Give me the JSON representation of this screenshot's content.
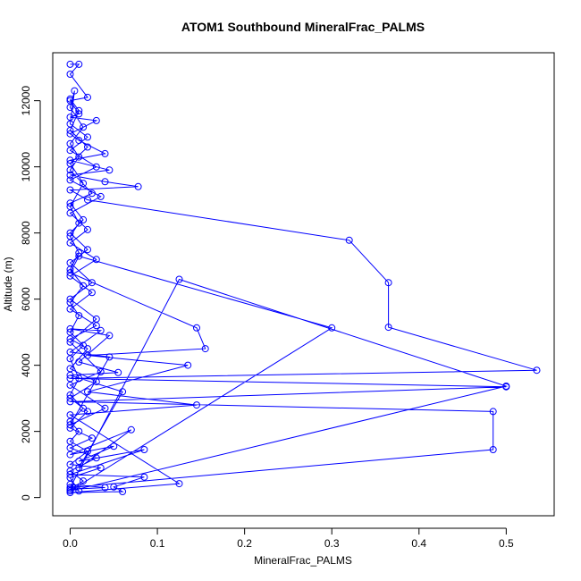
{
  "chart_data": {
    "type": "scatter",
    "title": "ATOM1 Southbound MineralFrac_PALMS",
    "xlabel": "MineralFrac_PALMS",
    "ylabel": "Altitude (m)",
    "xlim": [
      -0.02,
      0.555
    ],
    "ylim": [
      -550,
      13450
    ],
    "xticks": [
      0,
      0.1,
      0.2,
      0.3,
      0.4,
      0.5
    ],
    "xtick_labels": [
      "0.0",
      "0.1",
      "0.2",
      "0.3",
      "0.4",
      "0.5"
    ],
    "yticks": [
      0,
      2000,
      4000,
      6000,
      8000,
      10000,
      12000
    ],
    "ytick_labels": [
      "0",
      "2000",
      "4000",
      "6000",
      "8000",
      "10000",
      "12000"
    ],
    "grid": false,
    "legend": "none",
    "series": [
      {
        "color": "#0000ff",
        "marker": "open-circle",
        "connected": true,
        "points": [
          [
            0.0,
            13100
          ],
          [
            0.01,
            13100
          ],
          [
            0.0,
            12800
          ],
          [
            0.02,
            12100
          ],
          [
            0.0,
            12000
          ],
          [
            0.01,
            11600
          ],
          [
            0.0,
            11500
          ],
          [
            0.03,
            11400
          ],
          [
            0.0,
            11000
          ],
          [
            0.01,
            10800
          ],
          [
            0.04,
            10400
          ],
          [
            0.0,
            10200
          ],
          [
            0.045,
            9900
          ],
          [
            0.0,
            9750
          ],
          [
            0.04,
            9550
          ],
          [
            0.078,
            9400
          ],
          [
            0.0,
            9300
          ],
          [
            0.02,
            9000
          ],
          [
            0.32,
            7780
          ],
          [
            0.365,
            6500
          ],
          [
            0.365,
            5150
          ],
          [
            0.535,
            3850
          ],
          [
            0.0,
            3600
          ],
          [
            0.5,
            3350
          ],
          [
            0.0,
            2900
          ],
          [
            0.485,
            2600
          ],
          [
            0.485,
            1450
          ],
          [
            0.0,
            300
          ],
          [
            0.125,
            6600
          ],
          [
            0.5,
            3370
          ],
          [
            0.0,
            200
          ],
          [
            0.3,
            5130
          ],
          [
            0.01,
            7300
          ],
          [
            0.0,
            6800
          ],
          [
            0.145,
            5130
          ],
          [
            0.155,
            4500
          ],
          [
            0.02,
            4300
          ],
          [
            0.135,
            4000
          ],
          [
            0.02,
            3200
          ],
          [
            0.145,
            2800
          ],
          [
            0.0,
            2500
          ],
          [
            0.125,
            420
          ],
          [
            0.0,
            150
          ],
          [
            0.06,
            180
          ],
          [
            0.05,
            320
          ],
          [
            0.085,
            620
          ],
          [
            0.0,
            700
          ],
          [
            0.085,
            1450
          ],
          [
            0.01,
            1100
          ],
          [
            0.05,
            1550
          ],
          [
            0.0,
            1300
          ],
          [
            0.07,
            2050
          ],
          [
            0.01,
            900
          ],
          [
            0.06,
            3200
          ],
          [
            0.0,
            3700
          ],
          [
            0.055,
            3780
          ],
          [
            0.01,
            4100
          ],
          [
            0.045,
            4900
          ],
          [
            0.0,
            5100
          ],
          [
            0.035,
            5050
          ],
          [
            0.0,
            4400
          ],
          [
            0.045,
            4250
          ],
          [
            0.0,
            2200
          ],
          [
            0.04,
            2700
          ],
          [
            0.0,
            3400
          ],
          [
            0.035,
            3800
          ],
          [
            0.0,
            4700
          ],
          [
            0.03,
            5400
          ],
          [
            0.0,
            6000
          ],
          [
            0.025,
            6500
          ],
          [
            0.0,
            7100
          ],
          [
            0.02,
            7500
          ],
          [
            0.0,
            8000
          ],
          [
            0.015,
            8400
          ],
          [
            0.0,
            8900
          ],
          [
            0.025,
            9200
          ],
          [
            0.0,
            9900
          ],
          [
            0.01,
            10300
          ],
          [
            0.0,
            10700
          ],
          [
            0.015,
            11200
          ],
          [
            0.0,
            11800
          ],
          [
            0.005,
            12300
          ],
          [
            0.0,
            11300
          ],
          [
            0.02,
            10900
          ],
          [
            0.0,
            10500
          ],
          [
            0.03,
            10000
          ],
          [
            0.0,
            9600
          ],
          [
            0.035,
            9100
          ],
          [
            0.0,
            8600
          ],
          [
            0.02,
            8100
          ],
          [
            0.0,
            7700
          ],
          [
            0.03,
            7200
          ],
          [
            0.0,
            6700
          ],
          [
            0.025,
            6200
          ],
          [
            0.0,
            5700
          ],
          [
            0.03,
            5200
          ],
          [
            0.0,
            4800
          ],
          [
            0.02,
            4500
          ],
          [
            0.0,
            3900
          ],
          [
            0.03,
            3500
          ],
          [
            0.0,
            3000
          ],
          [
            0.02,
            2600
          ],
          [
            0.0,
            2100
          ],
          [
            0.025,
            1800
          ],
          [
            0.0,
            1500
          ],
          [
            0.03,
            1200
          ],
          [
            0.0,
            800
          ],
          [
            0.015,
            500
          ],
          [
            0.0,
            250
          ],
          [
            0.04,
            300
          ],
          [
            0.0,
            400
          ],
          [
            0.01,
            200
          ],
          [
            0.0,
            600
          ],
          [
            0.035,
            900
          ],
          [
            0.0,
            1000
          ],
          [
            0.02,
            1400
          ],
          [
            0.0,
            1700
          ],
          [
            0.01,
            2000
          ],
          [
            0.0,
            2300
          ],
          [
            0.015,
            2700
          ],
          [
            0.0,
            3100
          ],
          [
            0.01,
            3600
          ],
          [
            0.0,
            4200
          ],
          [
            0.015,
            4600
          ],
          [
            0.0,
            5000
          ],
          [
            0.01,
            5500
          ],
          [
            0.0,
            5900
          ],
          [
            0.015,
            6400
          ],
          [
            0.0,
            6900
          ],
          [
            0.01,
            7400
          ],
          [
            0.0,
            7900
          ],
          [
            0.01,
            8300
          ],
          [
            0.0,
            8800
          ],
          [
            0.015,
            9500
          ],
          [
            0.0,
            10100
          ],
          [
            0.02,
            10600
          ],
          [
            0.0,
            11100
          ],
          [
            0.01,
            11700
          ],
          [
            0.0,
            12050
          ]
        ]
      }
    ]
  }
}
